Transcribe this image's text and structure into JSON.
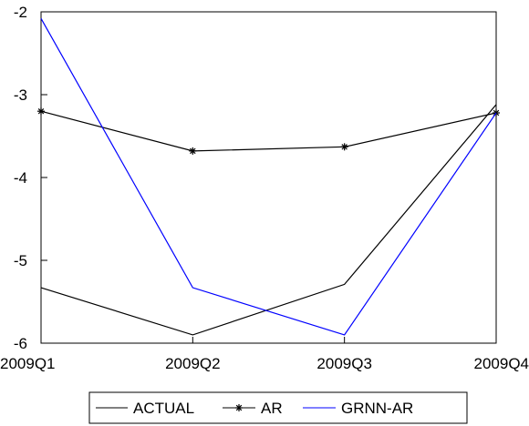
{
  "chart_data": {
    "type": "line",
    "x": [
      "2009Q1",
      "2009Q2",
      "2009Q3",
      "2009Q4"
    ],
    "ylim": [
      -6,
      -2
    ],
    "yticks": [
      -2,
      -3,
      -4,
      -5,
      -6
    ],
    "title": "",
    "xlabel": "",
    "ylabel": "",
    "grid": false,
    "legend_position": "bottom",
    "series": [
      {
        "name": "ACTUAL",
        "values": [
          -5.33,
          -5.9,
          -5.29,
          -3.12
        ],
        "color": "#000000",
        "marker": "none"
      },
      {
        "name": "AR",
        "values": [
          -3.2,
          -3.68,
          -3.63,
          -3.22
        ],
        "color": "#000000",
        "marker": "asterisk"
      },
      {
        "name": "GRNN-AR",
        "values": [
          -2.08,
          -5.33,
          -5.9,
          -3.22
        ],
        "color": "#0000ff",
        "marker": "none"
      }
    ]
  }
}
